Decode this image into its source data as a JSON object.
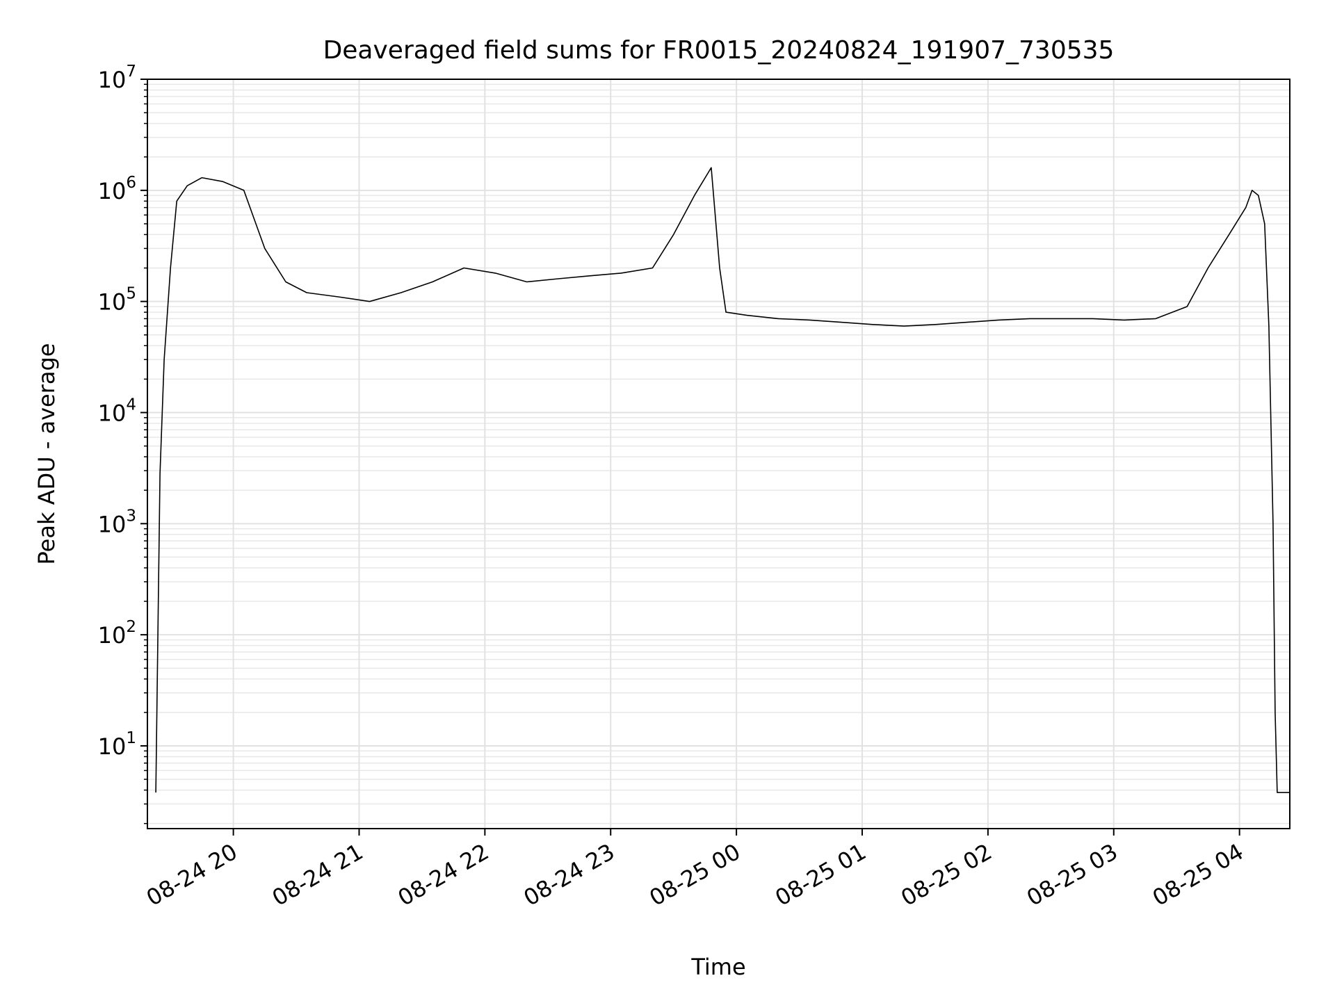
{
  "chart_data": {
    "type": "line",
    "title": "Deaveraged field sums for FR0015_20240824_191907_730535",
    "xlabel": "Time",
    "ylabel": "Peak ADU - average",
    "y_scale": "log",
    "ylim": [
      1.8,
      10000000
    ],
    "xlim": [
      "2024-08-24 19:19",
      "2024-08-25 04:24"
    ],
    "x_ticks": [
      "08-24 20",
      "08-24 21",
      "08-24 22",
      "08-24 23",
      "08-25 00",
      "08-25 01",
      "08-25 02",
      "08-25 03",
      "08-25 04"
    ],
    "x_tick_values": [
      "2024-08-24 20:00",
      "2024-08-24 21:00",
      "2024-08-24 22:00",
      "2024-08-24 23:00",
      "2024-08-25 00:00",
      "2024-08-25 01:00",
      "2024-08-25 02:00",
      "2024-08-25 03:00",
      "2024-08-25 04:00"
    ],
    "y_ticks": [
      {
        "base": "10",
        "exp": "1",
        "value": 10
      },
      {
        "base": "10",
        "exp": "2",
        "value": 100
      },
      {
        "base": "10",
        "exp": "3",
        "value": 1000
      },
      {
        "base": "10",
        "exp": "4",
        "value": 10000
      },
      {
        "base": "10",
        "exp": "5",
        "value": 100000
      },
      {
        "base": "10",
        "exp": "6",
        "value": 1000000
      },
      {
        "base": "10",
        "exp": "7",
        "value": 10000000
      }
    ],
    "grid": true,
    "line_color": "#000000",
    "series": [
      {
        "x": [
          "2024-08-24 19:23",
          "2024-08-24 19:25",
          "2024-08-24 19:27",
          "2024-08-24 19:30",
          "2024-08-24 19:33",
          "2024-08-24 19:38",
          "2024-08-24 19:45",
          "2024-08-24 19:55",
          "2024-08-24 20:05",
          "2024-08-24 20:15",
          "2024-08-24 20:25",
          "2024-08-24 20:35",
          "2024-08-24 20:50",
          "2024-08-24 21:05",
          "2024-08-24 21:20",
          "2024-08-24 21:35",
          "2024-08-24 21:50",
          "2024-08-24 22:05",
          "2024-08-24 22:20",
          "2024-08-24 22:35",
          "2024-08-24 22:50",
          "2024-08-24 23:05",
          "2024-08-24 23:20",
          "2024-08-24 23:30",
          "2024-08-24 23:40",
          "2024-08-24 23:48",
          "2024-08-24 23:52",
          "2024-08-24 23:55",
          "2024-08-25 00:05",
          "2024-08-25 00:20",
          "2024-08-25 00:35",
          "2024-08-25 00:50",
          "2024-08-25 01:05",
          "2024-08-25 01:20",
          "2024-08-25 01:35",
          "2024-08-25 01:50",
          "2024-08-25 02:05",
          "2024-08-25 02:20",
          "2024-08-25 02:35",
          "2024-08-25 02:50",
          "2024-08-25 03:05",
          "2024-08-25 03:20",
          "2024-08-25 03:35",
          "2024-08-25 03:45",
          "2024-08-25 03:55",
          "2024-08-25 04:03",
          "2024-08-25 04:06",
          "2024-08-25 04:09",
          "2024-08-25 04:12",
          "2024-08-25 04:14",
          "2024-08-25 04:16",
          "2024-08-25 04:17",
          "2024-08-25 04:18",
          "2024-08-25 04:24"
        ],
        "y": [
          3.8,
          2800,
          30000,
          200000,
          800000,
          1100000,
          1300000,
          1200000,
          1000000,
          300000,
          150000,
          120000,
          110000,
          100000,
          120000,
          150000,
          200000,
          180000,
          150000,
          160000,
          170000,
          180000,
          200000,
          400000,
          900000,
          1600000,
          200000,
          80000,
          75000,
          70000,
          68000,
          65000,
          62000,
          60000,
          62000,
          65000,
          68000,
          70000,
          70000,
          70000,
          68000,
          70000,
          90000,
          200000,
          400000,
          700000,
          1000000,
          900000,
          500000,
          60000,
          1000,
          20,
          3.8,
          3.8
        ]
      }
    ]
  }
}
